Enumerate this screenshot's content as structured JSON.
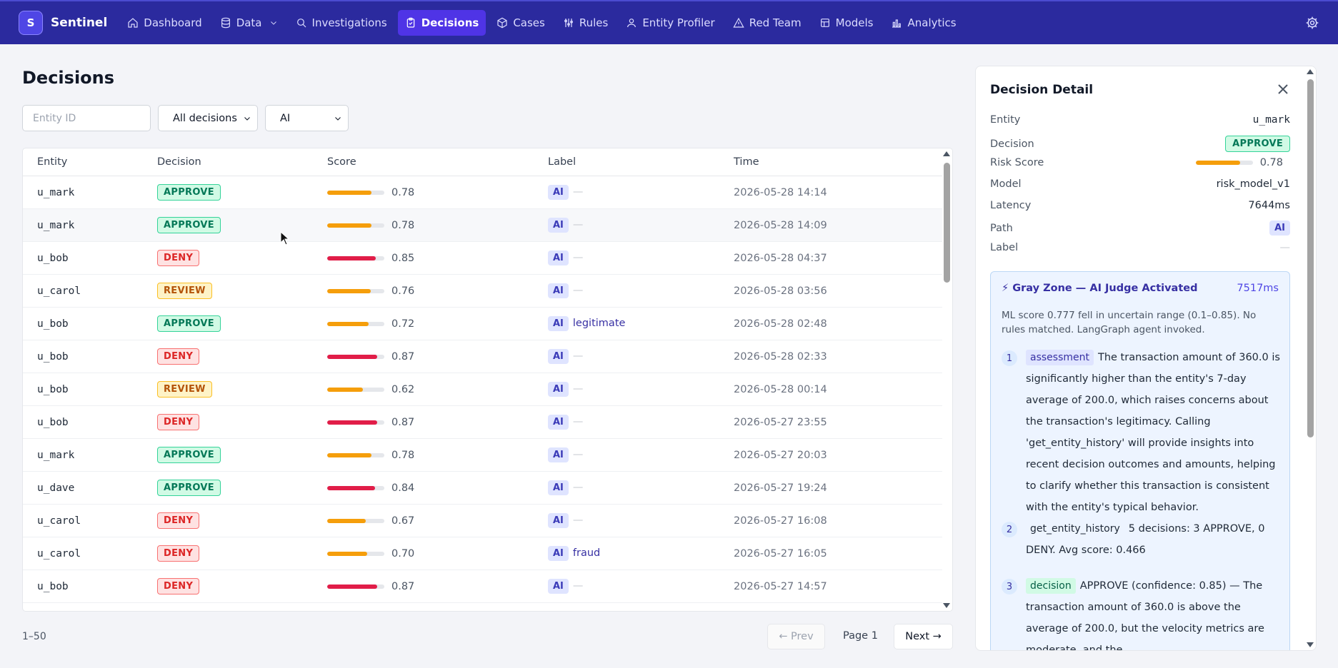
{
  "app": {
    "logo_letter": "S",
    "name": "Sentinel"
  },
  "nav": [
    {
      "label": "Dashboard",
      "icon": "home-icon"
    },
    {
      "label": "Data",
      "icon": "database-icon",
      "dropdown": true
    },
    {
      "label": "Investigations",
      "icon": "search-icon"
    },
    {
      "label": "Decisions",
      "icon": "clipboard-icon",
      "active": true
    },
    {
      "label": "Cases",
      "icon": "box-icon"
    },
    {
      "label": "Rules",
      "icon": "sliders-icon"
    },
    {
      "label": "Entity Profiler",
      "icon": "user-icon"
    },
    {
      "label": "Red Team",
      "icon": "warning-triangle-icon"
    },
    {
      "label": "Models",
      "icon": "layers-icon"
    },
    {
      "label": "Analytics",
      "icon": "bar-chart-icon"
    }
  ],
  "page": {
    "title": "Decisions"
  },
  "filters": {
    "entity_placeholder": "Entity ID",
    "decision_select": "All decisions",
    "path_select": "AI"
  },
  "table": {
    "headers": [
      "Entity",
      "Decision",
      "Score",
      "Label",
      "Time"
    ],
    "rows": [
      {
        "entity": "u_mark",
        "decision": "APPROVE",
        "score": "0.78",
        "score_value": 0.78,
        "path": "AI",
        "label": "—",
        "time": "2026-05-28 14:14"
      },
      {
        "entity": "u_mark",
        "decision": "APPROVE",
        "score": "0.78",
        "score_value": 0.78,
        "path": "AI",
        "label": "—",
        "time": "2026-05-28 14:09"
      },
      {
        "entity": "u_bob",
        "decision": "DENY",
        "score": "0.85",
        "score_value": 0.85,
        "path": "AI",
        "label": "—",
        "time": "2026-05-28 04:37"
      },
      {
        "entity": "u_carol",
        "decision": "REVIEW",
        "score": "0.76",
        "score_value": 0.76,
        "path": "AI",
        "label": "—",
        "time": "2026-05-28 03:56"
      },
      {
        "entity": "u_bob",
        "decision": "APPROVE",
        "score": "0.72",
        "score_value": 0.72,
        "path": "AI",
        "label": "legitimate",
        "time": "2026-05-28 02:48"
      },
      {
        "entity": "u_bob",
        "decision": "DENY",
        "score": "0.87",
        "score_value": 0.87,
        "path": "AI",
        "label": "—",
        "time": "2026-05-28 02:33"
      },
      {
        "entity": "u_bob",
        "decision": "REVIEW",
        "score": "0.62",
        "score_value": 0.62,
        "path": "AI",
        "label": "—",
        "time": "2026-05-28 00:14"
      },
      {
        "entity": "u_bob",
        "decision": "DENY",
        "score": "0.87",
        "score_value": 0.87,
        "path": "AI",
        "label": "—",
        "time": "2026-05-27 23:55"
      },
      {
        "entity": "u_mark",
        "decision": "APPROVE",
        "score": "0.78",
        "score_value": 0.78,
        "path": "AI",
        "label": "—",
        "time": "2026-05-27 20:03"
      },
      {
        "entity": "u_dave",
        "decision": "APPROVE",
        "score": "0.84",
        "score_value": 0.84,
        "path": "AI",
        "label": "—",
        "time": "2026-05-27 19:24"
      },
      {
        "entity": "u_carol",
        "decision": "DENY",
        "score": "0.67",
        "score_value": 0.67,
        "path": "AI",
        "label": "—",
        "time": "2026-05-27 16:08"
      },
      {
        "entity": "u_carol",
        "decision": "DENY",
        "score": "0.70",
        "score_value": 0.7,
        "path": "AI",
        "label": "fraud",
        "time": "2026-05-27 16:05"
      },
      {
        "entity": "u_bob",
        "decision": "DENY",
        "score": "0.87",
        "score_value": 0.87,
        "path": "AI",
        "label": "—",
        "time": "2026-05-27 14:57"
      }
    ]
  },
  "pagination": {
    "range": "1–50",
    "prev": "← Prev",
    "page": "Page 1",
    "next": "Next →"
  },
  "detail": {
    "title": "Decision Detail",
    "fields": {
      "entity_label": "Entity",
      "entity": "u_mark",
      "decision_label": "Decision",
      "decision": "APPROVE",
      "risk_label": "Risk Score",
      "risk": "0.78",
      "risk_value": 0.78,
      "model_label": "Model",
      "model": "risk_model_v1",
      "latency_label": "Latency",
      "latency": "7644ms",
      "path_label": "Path",
      "path": "AI",
      "label_label": "Label",
      "label": "—"
    },
    "judge": {
      "title": "⚡ Gray Zone — AI Judge Activated",
      "time": "7517ms",
      "description": "ML score 0.777 fell in uncertain range (0.1–0.85). No rules matched. LangGraph agent invoked.",
      "steps": [
        {
          "num": "1",
          "tag": "assessment",
          "text": "The transaction amount of 360.0 is significantly higher than the entity's 7-day average of 200.0, which raises concerns about the transaction's legitimacy. Calling 'get_entity_history' will provide insights into recent decision outcomes and amounts, helping to clarify whether this transaction is consistent with the entity's typical behavior."
        },
        {
          "num": "2",
          "tag": "get_entity_history",
          "text": "5 decisions: 3 APPROVE, 0 DENY. Avg score: 0.466"
        },
        {
          "num": "3",
          "tag": "decision",
          "text": "APPROVE (confidence: 0.85) — The transaction amount of 360.0 is above the average of 200.0, but the velocity metrics are moderate, and the"
        }
      ]
    }
  },
  "colors": {
    "nav_bg": "#2b2a9e",
    "active": "#4f34e6",
    "orange": "#f59e0b",
    "red": "#e11d48"
  }
}
